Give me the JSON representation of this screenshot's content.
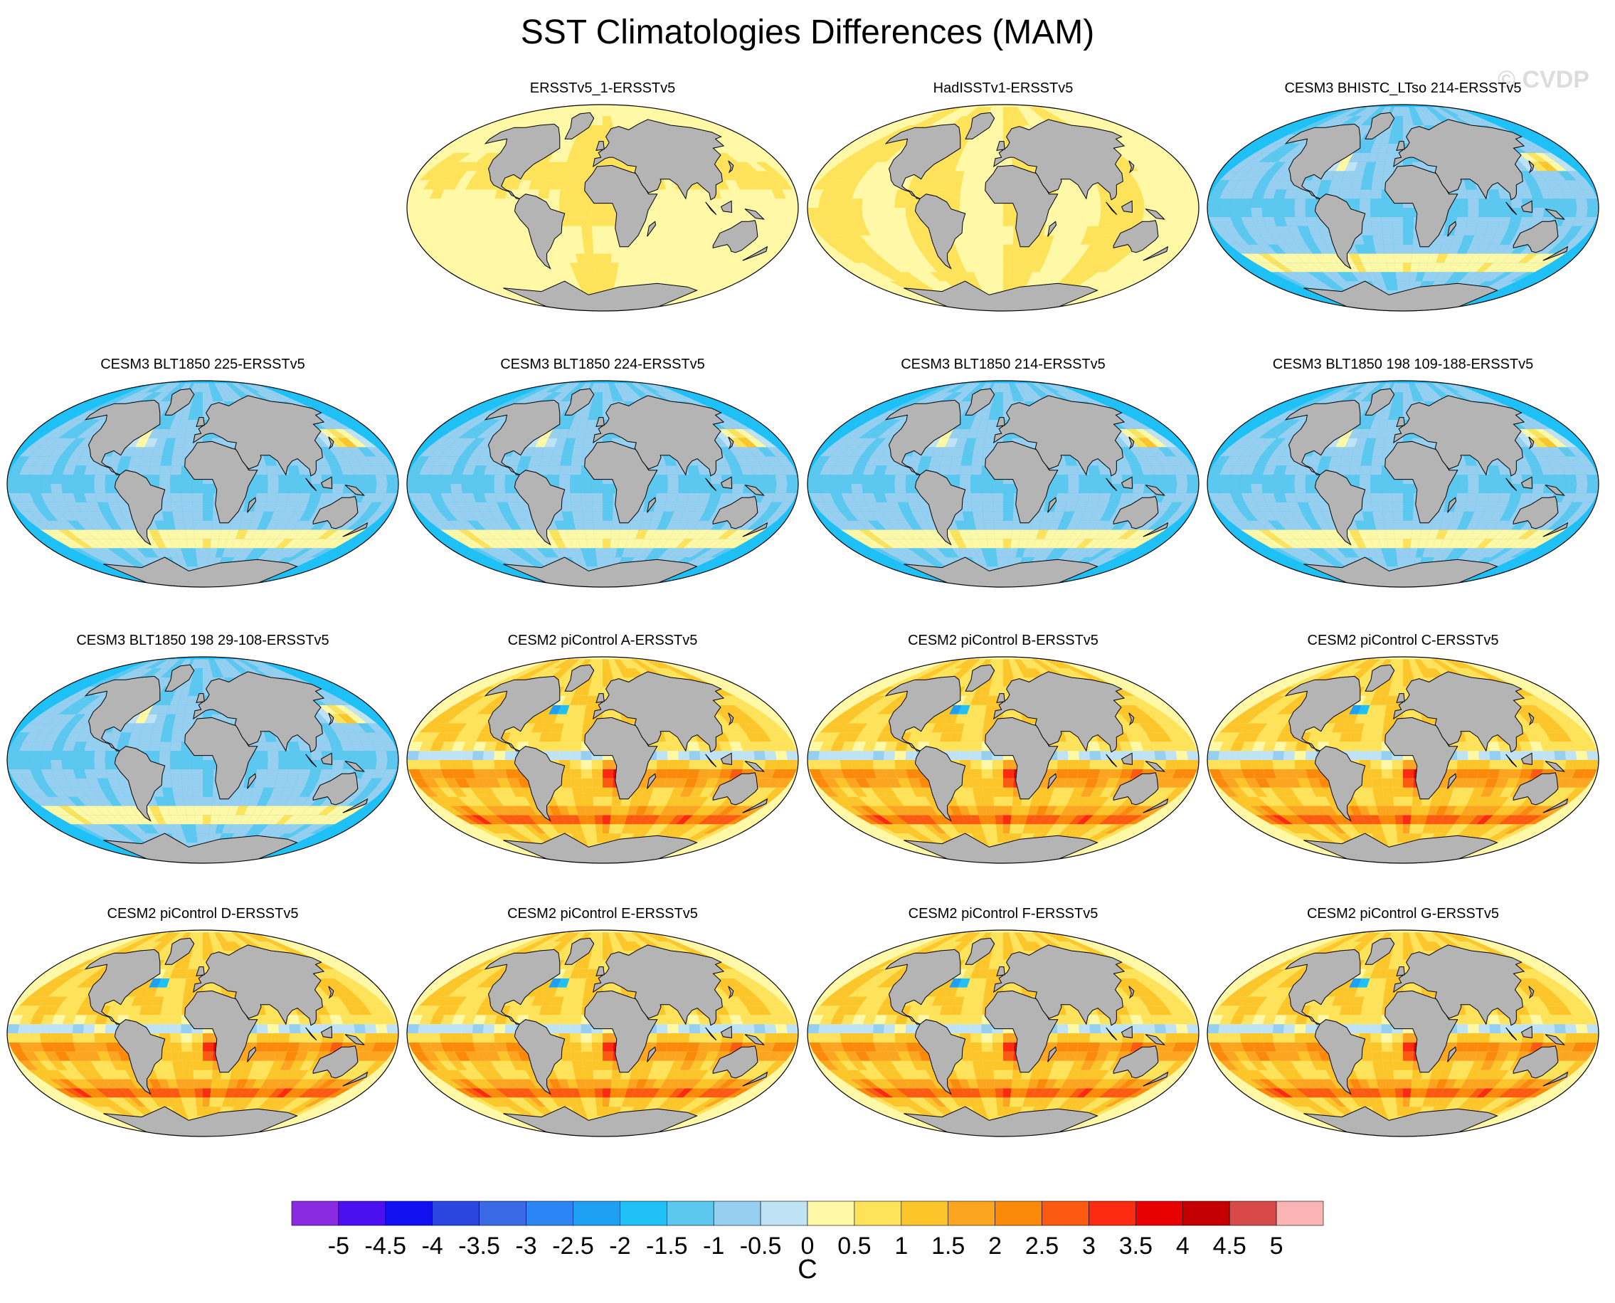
{
  "title": "SST Climatologies Differences (MAM)",
  "watermark": "© CVDP",
  "panels": [
    {
      "title": "ERSSTv5_1-ERSSTv5",
      "pattern": "near-zero-warm"
    },
    {
      "title": "HadISSTv1-ERSSTv5",
      "pattern": "slight-warm"
    },
    {
      "title": "CESM3 BHISTC_LTso 214-ERSSTv5",
      "pattern": "cold-bias"
    },
    {
      "title": "CESM3 BLT1850 225-ERSSTv5",
      "pattern": "cold-bias"
    },
    {
      "title": "CESM3 BLT1850 224-ERSSTv5",
      "pattern": "cold-bias"
    },
    {
      "title": "CESM3 BLT1850 214-ERSSTv5",
      "pattern": "cold-bias"
    },
    {
      "title": "CESM3 BLT1850 198 109-188-ERSSTv5",
      "pattern": "cold-bias"
    },
    {
      "title": "CESM3 BLT1850 198 29-108-ERSSTv5",
      "pattern": "cold-bias"
    },
    {
      "title": "CESM2 piControl A-ERSSTv5",
      "pattern": "warm-bias"
    },
    {
      "title": "CESM2 piControl B-ERSSTv5",
      "pattern": "warm-bias"
    },
    {
      "title": "CESM2 piControl C-ERSSTv5",
      "pattern": "warm-bias"
    },
    {
      "title": "CESM2 piControl D-ERSSTv5",
      "pattern": "warm-bias"
    },
    {
      "title": "CESM2 piControl E-ERSSTv5",
      "pattern": "warm-bias"
    },
    {
      "title": "CESM2 piControl F-ERSSTv5",
      "pattern": "warm-bias"
    },
    {
      "title": "CESM2 piControl G-ERSSTv5",
      "pattern": "warm-bias"
    }
  ],
  "colorbar": {
    "unit": "C",
    "labels": [
      "-5",
      "-4.5",
      "-4",
      "-3.5",
      "-3",
      "-2.5",
      "-2",
      "-1.5",
      "-1",
      "-0.5",
      "0",
      "0.5",
      "1",
      "1.5",
      "2",
      "2.5",
      "3",
      "3.5",
      "4",
      "4.5",
      "5"
    ],
    "colors": [
      "#8a2be2",
      "#4b0ff0",
      "#1010f0",
      "#2b45e0",
      "#3a6ae6",
      "#2b85f5",
      "#1ea0f5",
      "#1ec0f5",
      "#5cc8f0",
      "#96cff0",
      "#bfe3f5",
      "#fff8a6",
      "#fde25a",
      "#fcc52a",
      "#fba520",
      "#fb8a0a",
      "#fb5a10",
      "#fb2a10",
      "#e60000",
      "#c40000",
      "#d84a4a",
      "#fbb4b4"
    ]
  },
  "colors": {
    "land": "#b4b4b4",
    "coast": "#000000",
    "ice": "#ffffff"
  }
}
